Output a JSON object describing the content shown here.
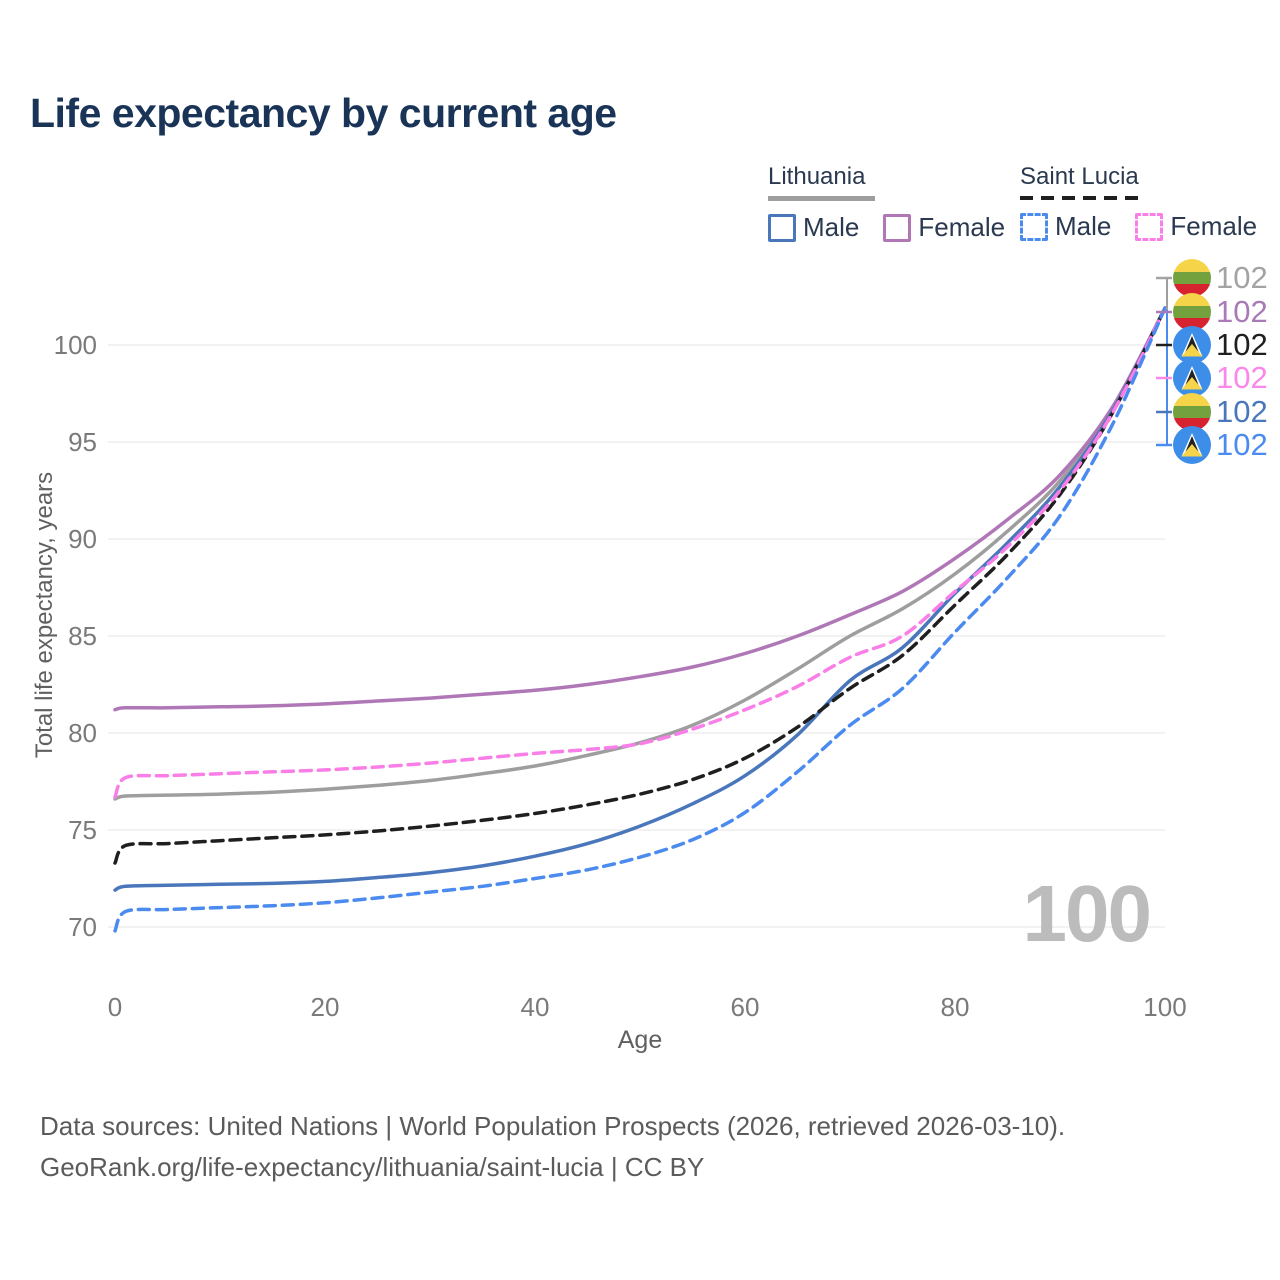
{
  "title": "Life expectancy by current age",
  "legend": {
    "groups": [
      {
        "label": "Lithuania",
        "line_style": "solid",
        "underline_color": "#9e9e9e",
        "items": [
          {
            "label": "Male",
            "color": "#4a77bc"
          },
          {
            "label": "Female",
            "color": "#b077b7"
          }
        ]
      },
      {
        "label": "Saint Lucia",
        "line_style": "dashed",
        "underline_color": "#1f1f1f",
        "items": [
          {
            "label": "Male",
            "color": "#4b8bf0"
          },
          {
            "label": "Female",
            "color": "#f97ee8"
          }
        ]
      }
    ]
  },
  "chart_data": {
    "type": "line",
    "title": "Life expectancy by current age",
    "xlabel": "Age",
    "ylabel": "Total life expectancy, years",
    "xlim": [
      0,
      100
    ],
    "ylim": [
      69,
      103
    ],
    "xticks": [
      0,
      20,
      40,
      60,
      80,
      100
    ],
    "yticks": [
      70,
      75,
      80,
      85,
      90,
      95,
      100
    ],
    "grid": "horizontal",
    "legend_position": "top-right",
    "x": [
      0,
      1,
      5,
      10,
      15,
      20,
      25,
      30,
      35,
      40,
      45,
      50,
      55,
      60,
      65,
      70,
      75,
      80,
      85,
      90,
      95,
      100
    ],
    "series": [
      {
        "name": "Lithuania Total",
        "country": "lithuania",
        "color": "#9e9e9e",
        "dashed": false,
        "values": [
          76.6,
          76.75,
          76.8,
          76.85,
          76.95,
          77.1,
          77.3,
          77.55,
          77.9,
          78.3,
          78.85,
          79.5,
          80.4,
          81.7,
          83.3,
          85.0,
          86.4,
          88.2,
          90.4,
          93.0,
          96.7,
          101.9
        ]
      },
      {
        "name": "Lithuania Female",
        "country": "lithuania",
        "color": "#b077b7",
        "dashed": false,
        "values": [
          81.2,
          81.3,
          81.3,
          81.35,
          81.4,
          81.5,
          81.65,
          81.8,
          82.0,
          82.2,
          82.5,
          82.9,
          83.4,
          84.1,
          85.0,
          86.1,
          87.3,
          89.0,
          91.0,
          93.3,
          96.8,
          101.9
        ]
      },
      {
        "name": "Lithuania Male",
        "country": "lithuania",
        "color": "#4a77bc",
        "dashed": false,
        "values": [
          71.9,
          72.1,
          72.15,
          72.2,
          72.25,
          72.35,
          72.55,
          72.8,
          73.15,
          73.65,
          74.3,
          75.2,
          76.35,
          77.8,
          79.9,
          82.7,
          84.4,
          87.2,
          89.8,
          92.7,
          96.6,
          101.9
        ]
      },
      {
        "name": "Saint Lucia Total",
        "country": "saint-lucia",
        "color": "#1f1f1f",
        "dashed": true,
        "values": [
          73.3,
          74.2,
          74.3,
          74.45,
          74.6,
          74.75,
          74.95,
          75.2,
          75.5,
          75.85,
          76.3,
          76.85,
          77.6,
          78.7,
          80.3,
          82.3,
          84.0,
          86.6,
          89.2,
          92.3,
          96.5,
          101.9
        ]
      },
      {
        "name": "Saint Lucia Female",
        "country": "saint-lucia",
        "color": "#f97ee8",
        "dashed": true,
        "values": [
          76.7,
          77.7,
          77.8,
          77.9,
          78.0,
          78.1,
          78.25,
          78.45,
          78.7,
          78.95,
          79.15,
          79.45,
          80.2,
          81.2,
          82.4,
          83.9,
          85.0,
          87.3,
          89.6,
          92.5,
          96.5,
          101.9
        ]
      },
      {
        "name": "Saint Lucia Male",
        "country": "saint-lucia",
        "color": "#4b8bf0",
        "dashed": true,
        "values": [
          69.8,
          70.8,
          70.9,
          71.0,
          71.1,
          71.25,
          71.5,
          71.8,
          72.1,
          72.5,
          72.95,
          73.6,
          74.5,
          75.9,
          78.0,
          80.4,
          82.3,
          85.2,
          88.0,
          91.2,
          95.9,
          101.9
        ]
      }
    ],
    "end_labels": [
      {
        "text": "102",
        "flag": "lithuania",
        "color": "#a3a3a3",
        "series": "Lithuania Total"
      },
      {
        "text": "102",
        "flag": "lithuania",
        "color": "#a87ab8",
        "series": "Lithuania Female"
      },
      {
        "text": "102",
        "flag": "saint-lucia",
        "color": "#1f1f1f",
        "series": "Saint Lucia Total"
      },
      {
        "text": "102",
        "flag": "saint-lucia",
        "color": "#fb87ea",
        "series": "Saint Lucia Female"
      },
      {
        "text": "102",
        "flag": "lithuania",
        "color": "#4a77bc",
        "series": "Lithuania Male"
      },
      {
        "text": "102",
        "flag": "saint-lucia",
        "color": "#4b8bf0",
        "series": "Saint Lucia Male"
      }
    ]
  },
  "watermark": "100",
  "footer": {
    "line1": "Data sources: United Nations | World Population Prospects (2026, retrieved 2026-03-10).",
    "line2": "GeoRank.org/life-expectancy/lithuania/saint-lucia | CC BY"
  },
  "colors": {
    "title": "#1a3457",
    "grid": "#eaeaea",
    "tick_label": "#7a7a7a",
    "axis_title": "#606060",
    "watermark": "#bcbcbc",
    "footer": "#5b5b5b"
  }
}
